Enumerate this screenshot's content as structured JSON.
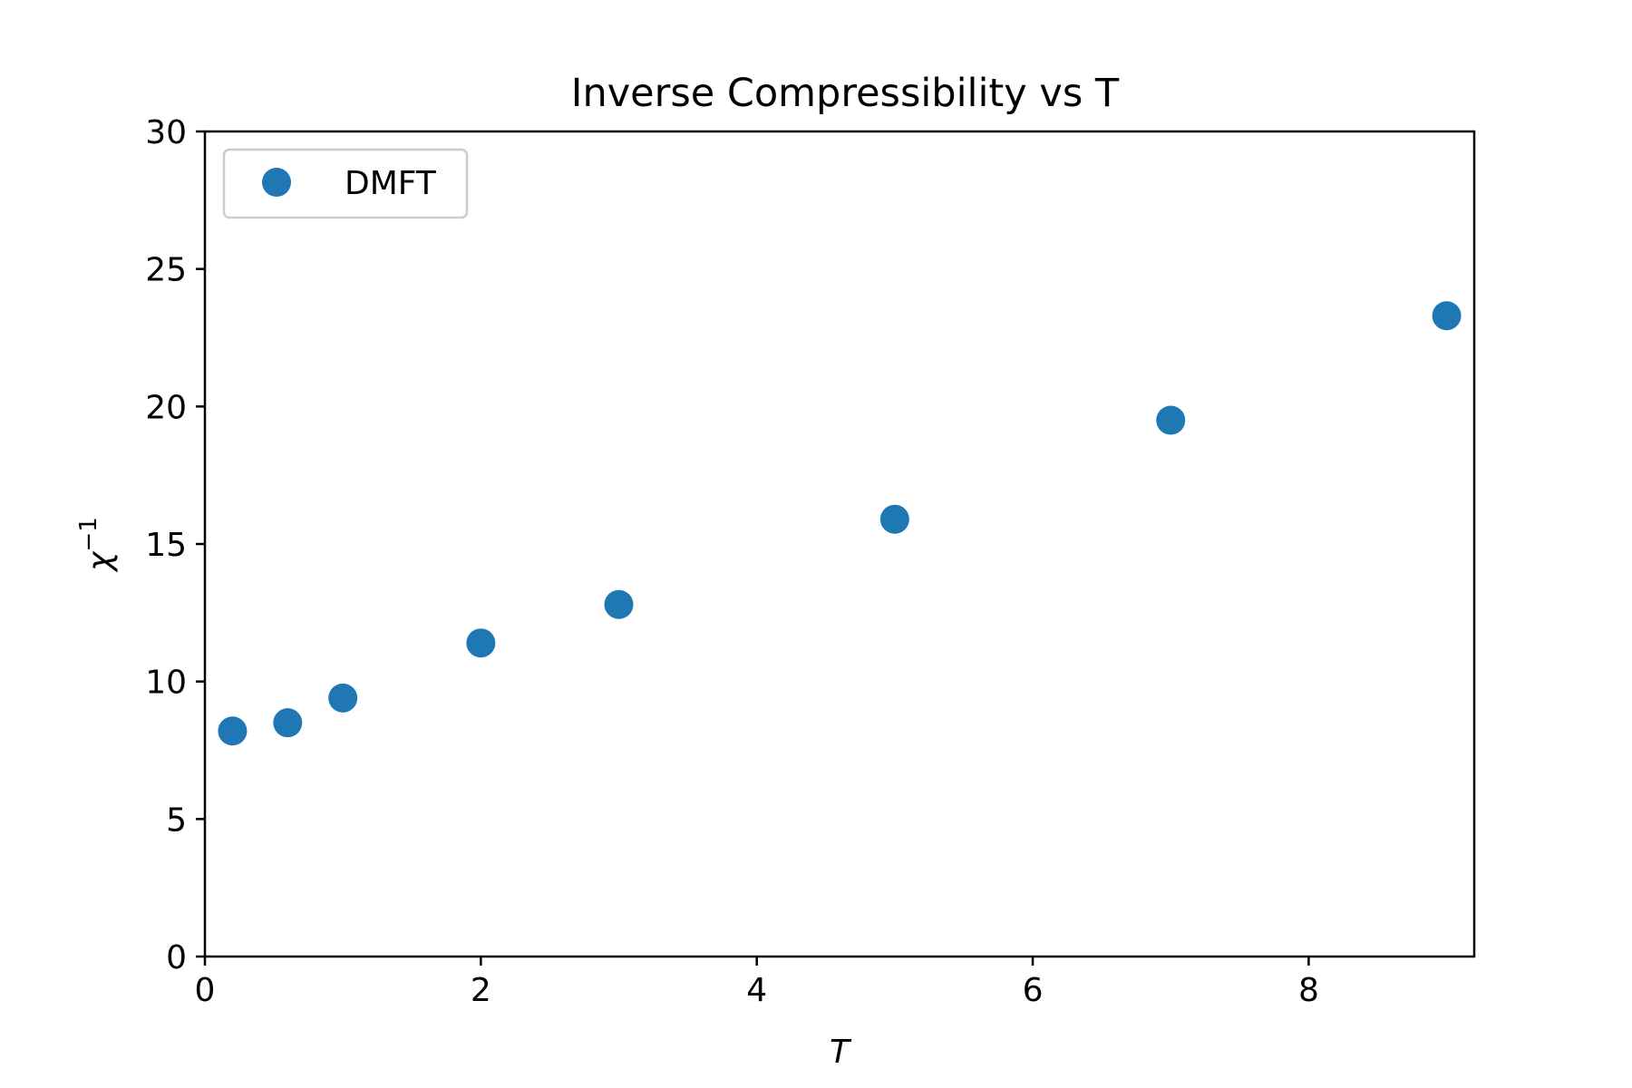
{
  "chart_data": {
    "type": "scatter",
    "title": "Inverse Compressibility vs T",
    "xlabel": "T",
    "ylabel": {
      "base": "χ",
      "superscript": "−1"
    },
    "xlim": [
      0,
      9.2
    ],
    "ylim": [
      0,
      30
    ],
    "x_ticks": [
      0,
      2,
      4,
      6,
      8
    ],
    "y_ticks": [
      0,
      5,
      10,
      15,
      20,
      25,
      30
    ],
    "grid": false,
    "legend_position": "top-left",
    "series": [
      {
        "name": "DMFT",
        "color": "#1f77b4",
        "marker": "circle",
        "x": [
          0.2,
          0.6,
          1.0,
          2.0,
          3.0,
          5.0,
          7.0,
          9.0
        ],
        "y": [
          8.2,
          8.5,
          9.4,
          11.4,
          12.8,
          15.9,
          19.5,
          23.3
        ]
      }
    ]
  }
}
